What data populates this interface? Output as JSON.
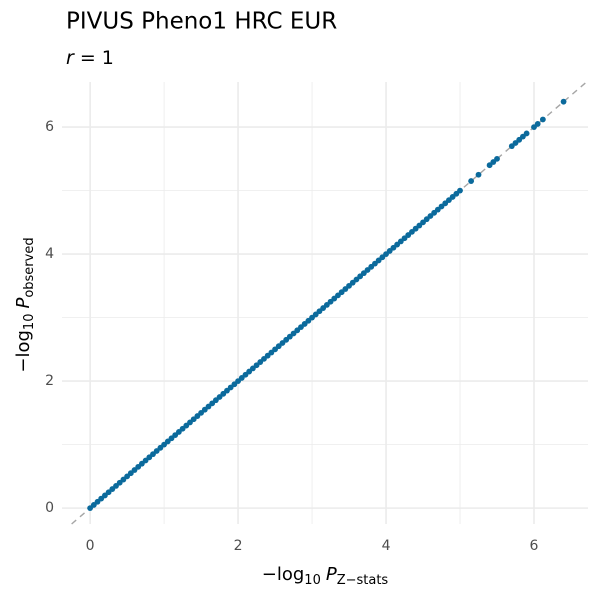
{
  "chart_data": {
    "type": "scatter",
    "title": "PIVUS Pheno1 HRC EUR",
    "subtitle": {
      "var": "r",
      "rest": " = 1"
    },
    "x_label": {
      "prefix": "−log",
      "sub": "10",
      "var": "P",
      "var_sub": "Z−stats"
    },
    "y_label": {
      "prefix": "−log",
      "sub": "10",
      "var": "P",
      "var_sub": "observed"
    },
    "color": "#0b6a9c",
    "x": [
      0,
      0.05,
      0.1,
      0.15,
      0.2,
      0.25,
      0.3,
      0.35,
      0.4,
      0.45,
      0.5,
      0.55,
      0.6,
      0.65,
      0.7,
      0.75,
      0.8,
      0.85,
      0.9,
      0.95,
      1,
      1.05,
      1.1,
      1.15,
      1.2,
      1.25,
      1.3,
      1.35,
      1.4,
      1.45,
      1.5,
      1.55,
      1.6,
      1.65,
      1.7,
      1.75,
      1.8,
      1.85,
      1.9,
      1.95,
      2,
      2.05,
      2.1,
      2.15,
      2.2,
      2.25,
      2.3,
      2.35,
      2.4,
      2.45,
      2.5,
      2.55,
      2.6,
      2.65,
      2.7,
      2.75,
      2.8,
      2.85,
      2.9,
      2.95,
      3,
      3.05,
      3.1,
      3.15,
      3.2,
      3.25,
      3.3,
      3.35,
      3.4,
      3.45,
      3.5,
      3.55,
      3.6,
      3.65,
      3.7,
      3.75,
      3.8,
      3.85,
      3.9,
      3.95,
      4,
      4.05,
      4.1,
      4.15,
      4.2,
      4.25,
      4.3,
      4.35,
      4.4,
      4.45,
      4.5,
      4.55,
      4.6,
      4.65,
      4.7,
      4.75,
      4.8,
      4.85,
      4.9,
      4.95,
      5,
      5.15,
      5.25,
      5.4,
      5.45,
      5.5,
      5.7,
      5.75,
      5.8,
      5.85,
      5.9,
      6,
      6.05,
      6.12,
      6.4
    ],
    "y": [
      0,
      0.05,
      0.1,
      0.15,
      0.2,
      0.25,
      0.3,
      0.35,
      0.4,
      0.45,
      0.5,
      0.55,
      0.6,
      0.65,
      0.7,
      0.75,
      0.8,
      0.85,
      0.9,
      0.95,
      1,
      1.05,
      1.1,
      1.15,
      1.2,
      1.25,
      1.3,
      1.35,
      1.4,
      1.45,
      1.5,
      1.55,
      1.6,
      1.65,
      1.7,
      1.75,
      1.8,
      1.85,
      1.9,
      1.95,
      2,
      2.05,
      2.1,
      2.15,
      2.2,
      2.25,
      2.3,
      2.35,
      2.4,
      2.45,
      2.5,
      2.55,
      2.6,
      2.65,
      2.7,
      2.75,
      2.8,
      2.85,
      2.9,
      2.95,
      3,
      3.05,
      3.1,
      3.15,
      3.2,
      3.25,
      3.3,
      3.35,
      3.4,
      3.45,
      3.5,
      3.55,
      3.6,
      3.65,
      3.7,
      3.75,
      3.8,
      3.85,
      3.9,
      3.95,
      4,
      4.05,
      4.1,
      4.15,
      4.2,
      4.25,
      4.3,
      4.35,
      4.4,
      4.45,
      4.5,
      4.55,
      4.6,
      4.65,
      4.7,
      4.75,
      4.8,
      4.85,
      4.9,
      4.95,
      5,
      5.15,
      5.25,
      5.4,
      5.45,
      5.5,
      5.7,
      5.75,
      5.8,
      5.85,
      5.9,
      6,
      6.05,
      6.12,
      6.4
    ],
    "reference_line": {
      "slope": 1,
      "intercept": 0
    },
    "xlim": [
      -0.38,
      6.73
    ],
    "ylim": [
      -0.25,
      6.71
    ],
    "xticks": [
      0,
      2,
      4,
      6
    ],
    "yticks": [
      0,
      2,
      4,
      6
    ],
    "minor_xticks": [
      1,
      3,
      5
    ],
    "minor_yticks": [
      1,
      3,
      5
    ],
    "grid": true
  }
}
